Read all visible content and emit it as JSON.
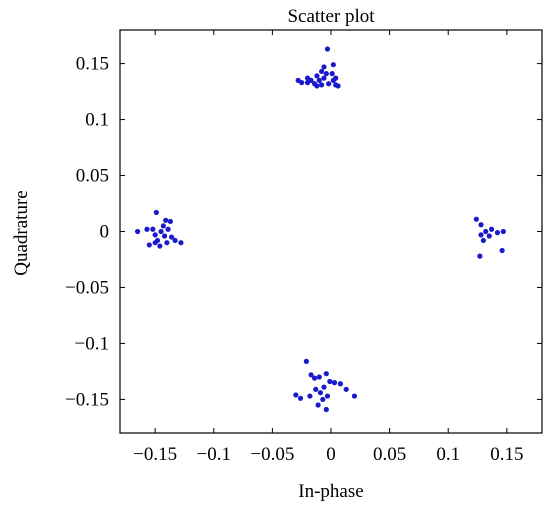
{
  "chart_data": {
    "type": "scatter",
    "title": "Scatter plot",
    "xlabel": "In-phase",
    "ylabel": "Quadrature",
    "xlim": [
      -0.18,
      0.18
    ],
    "ylim": [
      -0.18,
      0.18
    ],
    "xticks": [
      -0.15,
      -0.1,
      -0.05,
      0,
      0.05,
      0.1,
      0.15
    ],
    "xtick_labels": [
      "−0.15",
      "−0.1",
      "−0.05",
      "0",
      "0.05",
      "0.1",
      "0.15"
    ],
    "yticks": [
      0.15,
      0.1,
      0.05,
      0,
      -0.05,
      -0.1,
      -0.15
    ],
    "ytick_labels": [
      "0.15",
      "0.1",
      "0.05",
      "0",
      "−0.05",
      "−0.1",
      "−0.15"
    ],
    "grid": false,
    "marker_color": "#1a1acc",
    "series": [
      {
        "points": [
          [
            -0.003,
            0.163
          ],
          [
            -0.006,
            0.147
          ],
          [
            0.002,
            0.149
          ],
          [
            -0.008,
            0.143
          ],
          [
            -0.004,
            0.141
          ],
          [
            0.001,
            0.141
          ],
          [
            -0.012,
            0.139
          ],
          [
            -0.02,
            0.137
          ],
          [
            -0.017,
            0.135
          ],
          [
            -0.01,
            0.135
          ],
          [
            -0.006,
            0.137
          ],
          [
            0.002,
            0.135
          ],
          [
            0.004,
            0.137
          ],
          [
            -0.028,
            0.135
          ],
          [
            -0.025,
            0.133
          ],
          [
            -0.014,
            0.132
          ],
          [
            -0.008,
            0.131
          ],
          [
            -0.002,
            0.132
          ],
          [
            0.004,
            0.131
          ],
          [
            0.006,
            0.13
          ],
          [
            -0.012,
            0.13
          ],
          [
            -0.02,
            0.133
          ],
          [
            -0.149,
            0.017
          ],
          [
            -0.141,
            0.01
          ],
          [
            -0.137,
            0.009
          ],
          [
            -0.143,
            0.005
          ],
          [
            -0.157,
            0.002
          ],
          [
            -0.165,
            0.0
          ],
          [
            -0.152,
            0.002
          ],
          [
            -0.145,
            0.0
          ],
          [
            -0.139,
            0.002
          ],
          [
            -0.15,
            -0.003
          ],
          [
            -0.142,
            -0.004
          ],
          [
            -0.136,
            -0.005
          ],
          [
            -0.148,
            -0.008
          ],
          [
            -0.14,
            -0.01
          ],
          [
            -0.133,
            -0.008
          ],
          [
            -0.128,
            -0.01
          ],
          [
            -0.155,
            -0.012
          ],
          [
            -0.146,
            -0.013
          ],
          [
            -0.15,
            -0.01
          ],
          [
            0.124,
            0.011
          ],
          [
            0.128,
            0.006
          ],
          [
            0.132,
            0.0
          ],
          [
            0.137,
            0.002
          ],
          [
            0.142,
            -0.001
          ],
          [
            0.147,
            0.0
          ],
          [
            0.128,
            -0.003
          ],
          [
            0.135,
            -0.004
          ],
          [
            0.13,
            -0.008
          ],
          [
            0.146,
            -0.017
          ],
          [
            0.127,
            -0.022
          ],
          [
            -0.021,
            -0.116
          ],
          [
            -0.017,
            -0.128
          ],
          [
            -0.01,
            -0.13
          ],
          [
            -0.004,
            -0.127
          ],
          [
            -0.014,
            -0.131
          ],
          [
            -0.001,
            -0.134
          ],
          [
            0.003,
            -0.135
          ],
          [
            -0.006,
            -0.139
          ],
          [
            -0.013,
            -0.141
          ],
          [
            0.008,
            -0.136
          ],
          [
            0.013,
            -0.141
          ],
          [
            0.02,
            -0.147
          ],
          [
            -0.03,
            -0.146
          ],
          [
            -0.026,
            -0.149
          ],
          [
            -0.018,
            -0.147
          ],
          [
            -0.003,
            -0.147
          ],
          [
            -0.007,
            -0.15
          ],
          [
            -0.011,
            -0.155
          ],
          [
            -0.004,
            -0.159
          ],
          [
            -0.009,
            -0.144
          ]
        ]
      }
    ]
  }
}
